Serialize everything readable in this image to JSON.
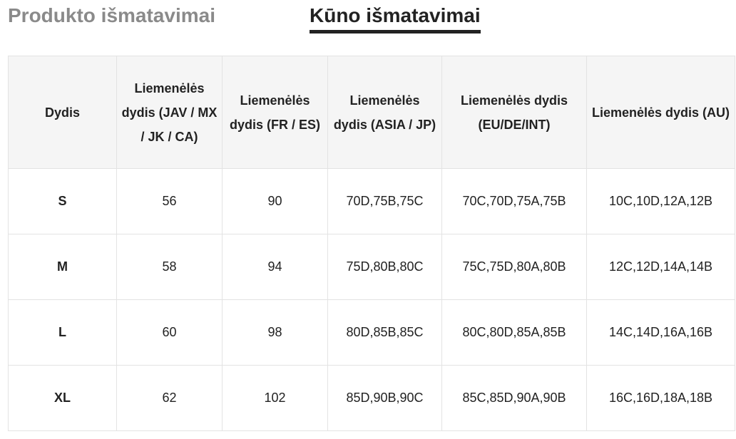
{
  "tabs": [
    {
      "label": "Produkto išmatavimai",
      "active": false
    },
    {
      "label": "Kūno išmatavimai",
      "active": true
    }
  ],
  "table": {
    "headers": [
      "Dydis",
      "Liemenėlės dydis (JAV / MX / JK / CA)",
      "Liemenėlės dydis (FR / ES)",
      "Liemenėlės dydis (ASIA / JP)",
      "Liemenėlės dydis (EU/DE/INT)",
      "Liemenėlės dydis (AU)"
    ],
    "rows": [
      [
        "S",
        "56",
        "90",
        "70D,75B,75C",
        "70C,70D,75A,75B",
        "10C,10D,12A,12B"
      ],
      [
        "M",
        "58",
        "94",
        "75D,80B,80C",
        "75C,75D,80A,80B",
        "12C,12D,14A,14B"
      ],
      [
        "L",
        "60",
        "98",
        "80D,85B,85C",
        "80C,80D,85A,85B",
        "14C,14D,16A,16B"
      ],
      [
        "XL",
        "62",
        "102",
        "85D,90B,90C",
        "85C,85D,90A,90B",
        "16C,16D,18A,18B"
      ]
    ]
  },
  "colors": {
    "header_bg": "#f5f5f5",
    "border": "#e3e3e3",
    "active_tab": "#222222",
    "inactive_tab": "#8a8a8a"
  }
}
